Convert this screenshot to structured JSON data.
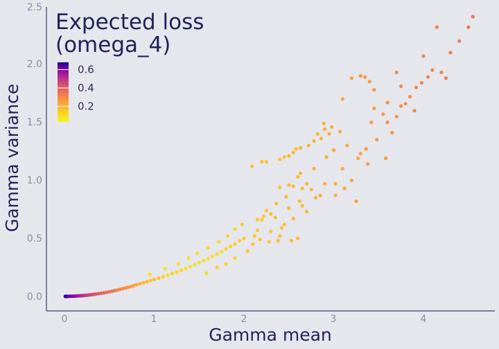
{
  "chart_data": {
    "type": "scatter",
    "title": "",
    "xlabel": "Gamma mean",
    "ylabel": "Gamma variance",
    "xlim": [
      -0.1,
      4.8
    ],
    "ylim": [
      -0.1,
      2.5
    ],
    "xticks": [
      "0",
      "1",
      "2",
      "3",
      "4"
    ],
    "yticks": [
      "0.0",
      "0.5",
      "1.0",
      "1.5",
      "2.0",
      "2.5"
    ],
    "grid": false,
    "legend": {
      "title_line1": "Expected loss",
      "title_line2": "(omega_4)",
      "placement": "top-left",
      "ticks": [
        "0.6",
        "0.4",
        "0.2"
      ],
      "tick_values": [
        0.6,
        0.4,
        0.2
      ],
      "range": [
        0.03,
        0.68
      ]
    },
    "colorscale": [
      "#f0f921",
      "#fdca26",
      "#fb9f3a",
      "#ed7953",
      "#d8576b",
      "#bd3786",
      "#9c179e",
      "#7201a8",
      "#46039f",
      "#0d0887"
    ],
    "points": [
      [
        0.01,
        0.0,
        0.68
      ],
      [
        0.02,
        0.0,
        0.64
      ],
      [
        0.03,
        0.0,
        0.6
      ],
      [
        0.05,
        0.001,
        0.57
      ],
      [
        0.07,
        0.001,
        0.54
      ],
      [
        0.09,
        0.002,
        0.52
      ],
      [
        0.11,
        0.002,
        0.5
      ],
      [
        0.13,
        0.003,
        0.48
      ],
      [
        0.15,
        0.004,
        0.46
      ],
      [
        0.17,
        0.005,
        0.45
      ],
      [
        0.19,
        0.006,
        0.43
      ],
      [
        0.21,
        0.007,
        0.41
      ],
      [
        0.23,
        0.009,
        0.4
      ],
      [
        0.25,
        0.01,
        0.38
      ],
      [
        0.27,
        0.012,
        0.37
      ],
      [
        0.29,
        0.014,
        0.36
      ],
      [
        0.31,
        0.016,
        0.34
      ],
      [
        0.33,
        0.018,
        0.33
      ],
      [
        0.35,
        0.02,
        0.32
      ],
      [
        0.38,
        0.023,
        0.31
      ],
      [
        0.41,
        0.027,
        0.29
      ],
      [
        0.44,
        0.031,
        0.28
      ],
      [
        0.47,
        0.035,
        0.27
      ],
      [
        0.5,
        0.04,
        0.26
      ],
      [
        0.53,
        0.045,
        0.25
      ],
      [
        0.56,
        0.05,
        0.24
      ],
      [
        0.59,
        0.055,
        0.23
      ],
      [
        0.62,
        0.06,
        0.22
      ],
      [
        0.65,
        0.066,
        0.21
      ],
      [
        0.68,
        0.072,
        0.2
      ],
      [
        0.71,
        0.078,
        0.19
      ],
      [
        0.74,
        0.085,
        0.18
      ],
      [
        0.77,
        0.092,
        0.17
      ],
      [
        0.8,
        0.1,
        0.16
      ],
      [
        0.84,
        0.108,
        0.15
      ],
      [
        0.88,
        0.117,
        0.14
      ],
      [
        0.92,
        0.126,
        0.13
      ],
      [
        0.96,
        0.136,
        0.12
      ],
      [
        1.0,
        0.146,
        0.12
      ],
      [
        1.05,
        0.158,
        0.11
      ],
      [
        1.1,
        0.17,
        0.1
      ],
      [
        1.15,
        0.183,
        0.09
      ],
      [
        1.2,
        0.197,
        0.09
      ],
      [
        1.25,
        0.21,
        0.08
      ],
      [
        1.3,
        0.224,
        0.08
      ],
      [
        1.35,
        0.24,
        0.07
      ],
      [
        1.4,
        0.256,
        0.07
      ],
      [
        1.45,
        0.273,
        0.07
      ],
      [
        1.5,
        0.29,
        0.07
      ],
      [
        1.55,
        0.308,
        0.07
      ],
      [
        1.6,
        0.326,
        0.07
      ],
      [
        1.65,
        0.345,
        0.07
      ],
      [
        1.7,
        0.365,
        0.08
      ],
      [
        1.75,
        0.385,
        0.08
      ],
      [
        1.8,
        0.41,
        0.09
      ],
      [
        1.85,
        0.43,
        0.09
      ],
      [
        1.9,
        0.45,
        0.1
      ],
      [
        1.95,
        0.48,
        0.1
      ],
      [
        2.0,
        0.5,
        0.11
      ],
      [
        0.95,
        0.19,
        0.08
      ],
      [
        1.12,
        0.24,
        0.07
      ],
      [
        1.27,
        0.28,
        0.07
      ],
      [
        1.38,
        0.33,
        0.07
      ],
      [
        1.48,
        0.37,
        0.07
      ],
      [
        1.6,
        0.42,
        0.08
      ],
      [
        1.72,
        0.47,
        0.08
      ],
      [
        1.82,
        0.52,
        0.09
      ],
      [
        1.9,
        0.58,
        0.09
      ],
      [
        1.98,
        0.62,
        0.1
      ],
      [
        1.58,
        0.2,
        0.07
      ],
      [
        1.7,
        0.25,
        0.08
      ],
      [
        1.8,
        0.28,
        0.08
      ],
      [
        1.9,
        0.33,
        0.09
      ],
      [
        2.04,
        0.39,
        0.1
      ],
      [
        2.1,
        0.45,
        0.11
      ],
      [
        2.15,
        0.57,
        0.11
      ],
      [
        2.2,
        0.66,
        0.11
      ],
      [
        2.25,
        0.74,
        0.12
      ],
      [
        2.3,
        0.56,
        0.11
      ],
      [
        2.35,
        0.68,
        0.12
      ],
      [
        2.4,
        0.52,
        0.12
      ],
      [
        2.45,
        0.62,
        0.12
      ],
      [
        2.5,
        0.76,
        0.13
      ],
      [
        2.55,
        0.67,
        0.13
      ],
      [
        2.6,
        0.5,
        0.13
      ],
      [
        2.62,
        0.82,
        0.13
      ],
      [
        2.65,
        0.78,
        0.13
      ],
      [
        2.7,
        0.73,
        0.14
      ],
      [
        2.75,
        0.92,
        0.14
      ],
      [
        2.8,
        0.85,
        0.14
      ],
      [
        2.47,
        0.86,
        0.13
      ],
      [
        2.36,
        0.8,
        0.12
      ],
      [
        2.4,
        0.94,
        0.12
      ],
      [
        2.55,
        0.95,
        0.13
      ],
      [
        2.63,
        1.06,
        0.13
      ],
      [
        2.78,
        1.1,
        0.14
      ],
      [
        2.09,
        1.12,
        0.12
      ],
      [
        2.2,
        1.16,
        0.12
      ],
      [
        2.25,
        1.16,
        0.12
      ],
      [
        2.4,
        1.18,
        0.12
      ],
      [
        2.45,
        1.2,
        0.12
      ],
      [
        2.5,
        1.21,
        0.13
      ],
      [
        2.55,
        1.24,
        0.13
      ],
      [
        2.58,
        1.27,
        0.13
      ],
      [
        2.63,
        1.28,
        0.13
      ],
      [
        2.72,
        1.3,
        0.14
      ],
      [
        2.78,
        1.34,
        0.14
      ],
      [
        2.82,
        1.4,
        0.14
      ],
      [
        2.86,
        1.36,
        0.14
      ],
      [
        2.9,
        1.44,
        0.15
      ],
      [
        2.95,
        1.4,
        0.15
      ],
      [
        2.98,
        1.46,
        0.15
      ],
      [
        2.89,
        1.49,
        0.15
      ],
      [
        3.1,
        1.1,
        0.16
      ],
      [
        3.15,
        1.3,
        0.16
      ],
      [
        3.2,
        1.0,
        0.17
      ],
      [
        3.27,
        1.19,
        0.17
      ],
      [
        3.3,
        1.23,
        0.17
      ],
      [
        3.36,
        1.27,
        0.18
      ],
      [
        3.42,
        1.5,
        0.18
      ],
      [
        3.48,
        1.35,
        0.19
      ],
      [
        3.55,
        1.57,
        0.19
      ],
      [
        3.6,
        1.5,
        0.2
      ],
      [
        3.65,
        1.41,
        0.2
      ],
      [
        3.7,
        1.55,
        0.2
      ],
      [
        3.75,
        1.64,
        0.21
      ],
      [
        3.8,
        1.66,
        0.21
      ],
      [
        3.85,
        1.72,
        0.21
      ],
      [
        3.92,
        1.8,
        0.22
      ],
      [
        3.98,
        1.84,
        0.22
      ],
      [
        4.05,
        1.89,
        0.22
      ],
      [
        4.1,
        1.95,
        0.23
      ],
      [
        4.2,
        1.93,
        0.23
      ],
      [
        4.3,
        2.1,
        0.24
      ],
      [
        4.4,
        2.2,
        0.24
      ],
      [
        4.5,
        2.32,
        0.25
      ],
      [
        4.55,
        2.41,
        0.25
      ],
      [
        3.3,
        1.9,
        0.19
      ],
      [
        3.35,
        1.89,
        0.19
      ],
      [
        3.45,
        1.78,
        0.2
      ],
      [
        3.6,
        1.67,
        0.2
      ],
      [
        3.7,
        1.93,
        0.21
      ],
      [
        3.75,
        1.81,
        0.21
      ],
      [
        4.0,
        2.07,
        0.22
      ],
      [
        3.07,
        1.42,
        0.16
      ],
      [
        3.0,
        1.26,
        0.16
      ],
      [
        2.92,
        1.2,
        0.15
      ],
      [
        3.1,
        1.7,
        0.16
      ],
      [
        3.2,
        1.88,
        0.17
      ],
      [
        3.4,
        1.85,
        0.18
      ],
      [
        3.45,
        1.62,
        0.18
      ],
      [
        3.02,
        0.87,
        0.15
      ],
      [
        2.9,
        0.97,
        0.15
      ],
      [
        2.85,
        0.87,
        0.15
      ],
      [
        2.7,
        0.97,
        0.14
      ],
      [
        2.65,
        0.93,
        0.13
      ],
      [
        2.6,
        1.03,
        0.13
      ],
      [
        2.5,
        0.96,
        0.13
      ],
      [
        3.12,
        0.93,
        0.16
      ],
      [
        3.02,
        0.97,
        0.15
      ],
      [
        3.25,
        0.82,
        0.17
      ],
      [
        3.38,
        1.14,
        0.18
      ],
      [
        3.58,
        1.19,
        0.19
      ],
      [
        4.15,
        2.32,
        0.23
      ],
      [
        3.9,
        1.6,
        0.22
      ],
      [
        4.25,
        1.88,
        0.23
      ],
      [
        2.15,
        0.66,
        0.11
      ],
      [
        2.22,
        0.69,
        0.11
      ],
      [
        2.3,
        0.71,
        0.12
      ],
      [
        2.28,
        0.47,
        0.11
      ],
      [
        2.38,
        0.48,
        0.12
      ],
      [
        2.53,
        0.48,
        0.12
      ],
      [
        2.42,
        0.59,
        0.12
      ],
      [
        2.18,
        0.49,
        0.11
      ],
      [
        2.12,
        0.52,
        0.11
      ]
    ]
  }
}
